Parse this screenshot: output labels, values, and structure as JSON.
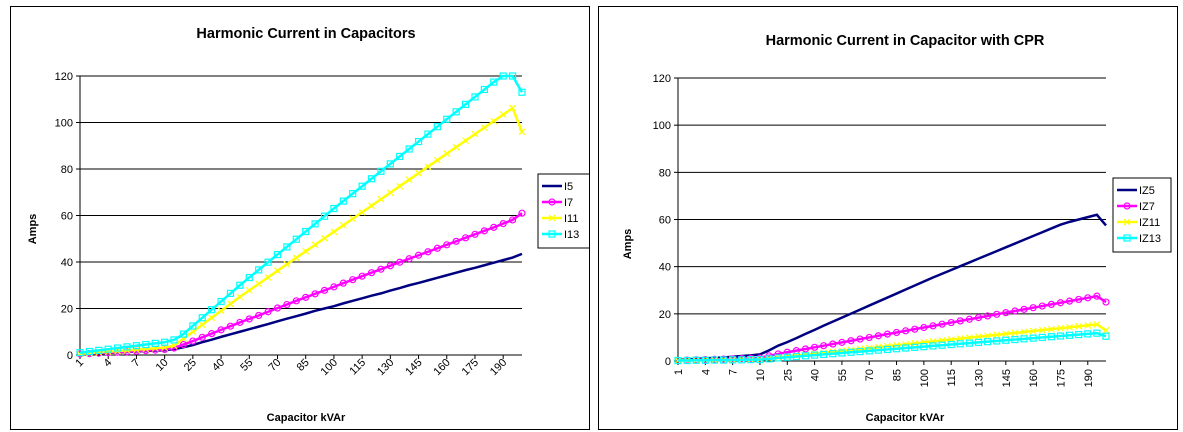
{
  "chart_data": [
    {
      "type": "line",
      "title": "Harmonic Current in Capacitors",
      "xlabel": "Capacitor kVAr",
      "ylabel": "Amps",
      "ylim": [
        0,
        120
      ],
      "yticks": [
        0,
        20,
        40,
        60,
        80,
        100,
        120
      ],
      "grid": "horizontal",
      "legend": "right",
      "x": [
        1,
        2,
        3,
        4,
        5,
        6,
        7,
        8,
        9,
        10,
        15,
        20,
        25,
        30,
        35,
        40,
        45,
        50,
        55,
        60,
        65,
        70,
        75,
        80,
        85,
        90,
        95,
        100,
        105,
        110,
        115,
        120,
        125,
        130,
        135,
        140,
        145,
        150,
        155,
        160,
        165,
        170,
        175,
        180,
        185,
        190,
        195,
        200
      ],
      "xtick_labels": [
        "1",
        "4",
        "7",
        "10",
        "25",
        "40",
        "55",
        "70",
        "85",
        "100",
        "115",
        "130",
        "145",
        "160",
        "175",
        "190"
      ],
      "series": [
        {
          "name": "I5",
          "color": "#000080",
          "marker": "none",
          "values": [
            0.3,
            0.5,
            0.7,
            0.9,
            1.1,
            1.3,
            1.5,
            1.7,
            1.9,
            2.1,
            2.5,
            3.3,
            4.3,
            5.5,
            6.6,
            7.8,
            8.9,
            10,
            11.1,
            12.2,
            13.3,
            14.5,
            15.6,
            16.7,
            17.8,
            19,
            20,
            21,
            22.2,
            23.3,
            24.4,
            25.5,
            26.5,
            27.7,
            28.8,
            30,
            31,
            32.1,
            33.2,
            34.3,
            35.4,
            36.5,
            37.5,
            38.6,
            39.7,
            40.8,
            41.9,
            43.5
          ]
        },
        {
          "name": "I7",
          "color": "#ff00ff",
          "marker": "circle",
          "values": [
            0.4,
            0.6,
            0.8,
            1,
            1.2,
            1.4,
            1.6,
            1.9,
            2.1,
            2.4,
            3,
            4.5,
            6,
            7.6,
            9.2,
            10.8,
            12.4,
            14,
            15.5,
            17,
            18.6,
            20.2,
            21.7,
            23.3,
            24.8,
            26.3,
            27.8,
            29.3,
            30.9,
            32.4,
            33.9,
            35.4,
            36.9,
            38.4,
            39.9,
            41.4,
            42.9,
            44.4,
            45.9,
            47.4,
            48.9,
            50.4,
            51.9,
            53.4,
            54.9,
            56.5,
            58.1,
            61
          ]
        },
        {
          "name": "I11",
          "color": "#ffff00",
          "marker": "x",
          "values": [
            0.5,
            0.8,
            1.1,
            1.4,
            1.7,
            2,
            2.3,
            2.6,
            2.9,
            3.2,
            4,
            7,
            10,
            13,
            16,
            19,
            22,
            25,
            27.8,
            30.6,
            33.4,
            36.2,
            39,
            41.8,
            44.6,
            47.4,
            50.2,
            53,
            55.8,
            58.6,
            61.4,
            64.2,
            67,
            69.8,
            72.6,
            75.4,
            78.2,
            81,
            83.8,
            86.6,
            89.4,
            92.2,
            95,
            97.8,
            100.6,
            103.4,
            106.2,
            96
          ]
        },
        {
          "name": "I13",
          "color": "#00ffff",
          "marker": "square",
          "values": [
            1,
            1.5,
            2,
            2.5,
            3,
            3.5,
            4,
            4.5,
            5,
            5.5,
            6.5,
            9,
            12.5,
            16,
            19.5,
            23,
            26.5,
            30,
            33.3,
            36.6,
            39.9,
            43.2,
            46.5,
            49.8,
            53.1,
            56.4,
            59.7,
            63,
            66.2,
            69.4,
            72.6,
            75.8,
            79,
            82.2,
            85.4,
            88.6,
            91.8,
            95,
            98.2,
            101.4,
            104.6,
            107.8,
            111,
            114.2,
            117.4,
            120.6,
            123.8,
            113
          ]
        }
      ]
    },
    {
      "type": "line",
      "title": "Harmonic Current in Capacitor with CPR",
      "xlabel": "Capacitor kVAr",
      "ylabel": "Amps",
      "ylim": [
        0,
        120
      ],
      "yticks": [
        0,
        20,
        40,
        60,
        80,
        100,
        120
      ],
      "grid": "horizontal",
      "legend": "right",
      "x": [
        1,
        2,
        3,
        4,
        5,
        6,
        7,
        8,
        9,
        10,
        15,
        20,
        25,
        30,
        35,
        40,
        45,
        50,
        55,
        60,
        65,
        70,
        75,
        80,
        85,
        90,
        95,
        100,
        105,
        110,
        115,
        120,
        125,
        130,
        135,
        140,
        145,
        150,
        155,
        160,
        165,
        170,
        175,
        180,
        185,
        190,
        195,
        200
      ],
      "xtick_labels": [
        "1",
        "4",
        "7",
        "10",
        "25",
        "40",
        "55",
        "70",
        "85",
        "100",
        "115",
        "130",
        "145",
        "160",
        "175",
        "190"
      ],
      "series": [
        {
          "name": "IZ5",
          "color": "#000080",
          "marker": "none",
          "values": [
            0.5,
            0.7,
            0.9,
            1.1,
            1.3,
            1.5,
            1.8,
            2.1,
            2.4,
            2.8,
            4.5,
            6.5,
            8,
            9.7,
            11.5,
            13.2,
            15,
            16.7,
            18.4,
            20.1,
            21.8,
            23.5,
            25.2,
            26.9,
            28.6,
            30.3,
            32,
            33.7,
            35.4,
            37,
            38.6,
            40.2,
            41.8,
            43.4,
            45,
            46.6,
            48.2,
            49.8,
            51.4,
            53,
            54.6,
            56.2,
            57.8,
            59,
            60,
            61,
            62,
            57.5
          ]
        },
        {
          "name": "IZ7",
          "color": "#ff00ff",
          "marker": "circle",
          "values": [
            0.3,
            0.4,
            0.5,
            0.6,
            0.7,
            0.8,
            0.9,
            1,
            1.1,
            1.3,
            2.2,
            3,
            3.7,
            4.4,
            5.1,
            5.8,
            6.5,
            7.2,
            7.9,
            8.6,
            9.3,
            10,
            10.7,
            11.4,
            12.1,
            12.8,
            13.5,
            14.2,
            14.9,
            15.6,
            16.3,
            17,
            17.7,
            18.4,
            19.1,
            19.8,
            20.5,
            21.2,
            21.9,
            22.6,
            23.3,
            24,
            24.7,
            25.4,
            26.1,
            26.8,
            27.5,
            25
          ]
        },
        {
          "name": "IZ11",
          "color": "#ffff00",
          "marker": "x",
          "values": [
            0.2,
            0.3,
            0.3,
            0.4,
            0.4,
            0.5,
            0.5,
            0.6,
            0.6,
            0.7,
            1.1,
            1.5,
            1.9,
            2.3,
            2.7,
            3.1,
            3.5,
            3.9,
            4.3,
            4.7,
            5.1,
            5.5,
            5.9,
            6.3,
            6.7,
            7.1,
            7.5,
            7.9,
            8.3,
            8.7,
            9.1,
            9.5,
            9.9,
            10.3,
            10.7,
            11.1,
            11.5,
            11.9,
            12.3,
            12.7,
            13.1,
            13.5,
            13.9,
            14.3,
            14.7,
            15.1,
            15.5,
            13
          ]
        },
        {
          "name": "IZ13",
          "color": "#00ffff",
          "marker": "square",
          "values": [
            0.2,
            0.2,
            0.3,
            0.3,
            0.4,
            0.4,
            0.5,
            0.5,
            0.6,
            0.6,
            0.9,
            1.3,
            1.6,
            1.9,
            2.2,
            2.5,
            2.8,
            3.1,
            3.4,
            3.7,
            4,
            4.3,
            4.6,
            4.9,
            5.2,
            5.5,
            5.8,
            6.1,
            6.4,
            6.7,
            7,
            7.3,
            7.6,
            7.9,
            8.2,
            8.5,
            8.8,
            9.1,
            9.4,
            9.7,
            10,
            10.3,
            10.6,
            10.9,
            11.2,
            11.5,
            11.8,
            10.5
          ]
        }
      ]
    }
  ]
}
